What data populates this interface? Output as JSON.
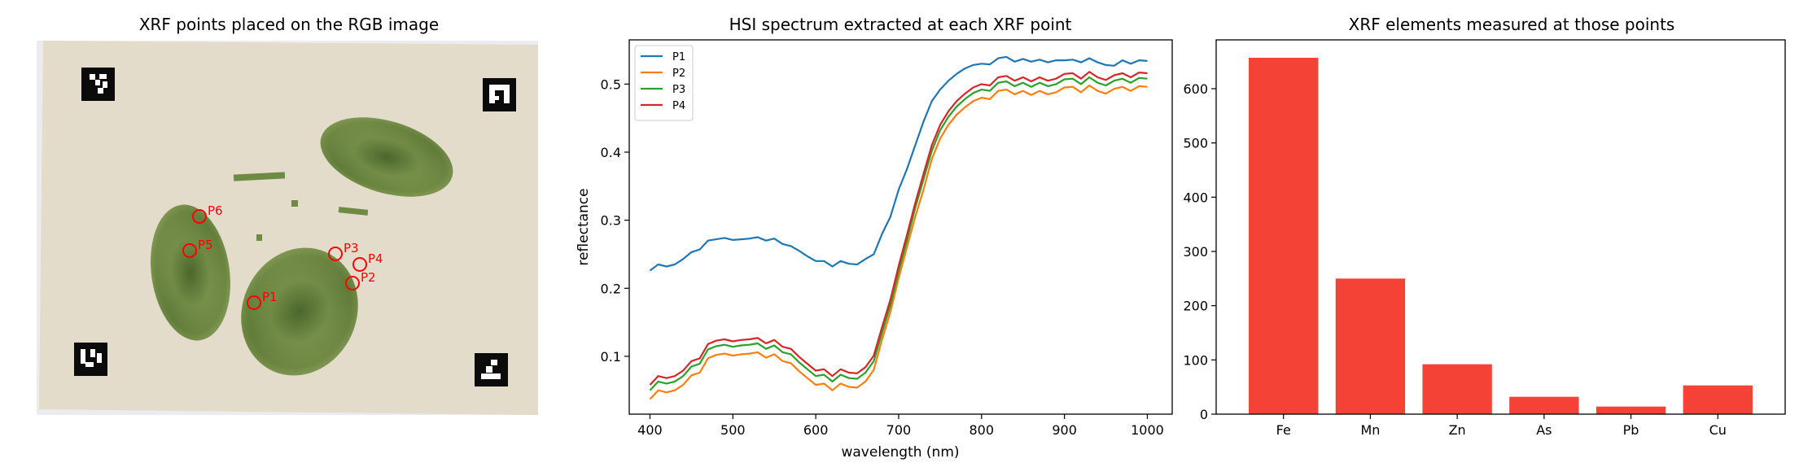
{
  "panels": {
    "image": {
      "title": "XRF points placed on the RGB image"
    },
    "spectrum": {
      "title": "HSI spectrum extracted at each XRF point"
    },
    "elements": {
      "title": "XRF elements measured at those points"
    }
  },
  "image_points": [
    {
      "label": "P1"
    },
    {
      "label": "P2"
    },
    {
      "label": "P3"
    },
    {
      "label": "P4"
    },
    {
      "label": "P5"
    },
    {
      "label": "P6"
    }
  ],
  "colors": {
    "marker": "#ff0000",
    "bar": "#f44336",
    "series": [
      "#1f77b4",
      "#ff7f0e",
      "#2ca02c",
      "#d62728"
    ],
    "paper": "#e3dccb",
    "leaf": "#6e8a44"
  },
  "chart_data": [
    {
      "type": "line",
      "title": "HSI spectrum extracted at each XRF point",
      "xlabel": "wavelength (nm)",
      "ylabel": "reflectance",
      "xlim": [
        375,
        1030
      ],
      "ylim": [
        0.015,
        0.565
      ],
      "xticks": [
        400,
        500,
        600,
        700,
        800,
        900,
        1000
      ],
      "yticks": [
        0.1,
        0.2,
        0.3,
        0.4,
        0.5
      ],
      "legend": "upper left",
      "x": [
        400,
        410,
        420,
        430,
        440,
        450,
        460,
        470,
        480,
        490,
        500,
        510,
        520,
        530,
        540,
        550,
        560,
        570,
        580,
        590,
        600,
        610,
        620,
        630,
        640,
        650,
        660,
        670,
        680,
        690,
        700,
        710,
        720,
        730,
        740,
        750,
        760,
        770,
        780,
        790,
        800,
        810,
        820,
        830,
        840,
        850,
        860,
        870,
        880,
        890,
        900,
        910,
        920,
        930,
        940,
        950,
        960,
        970,
        980,
        990,
        1000
      ],
      "series": [
        {
          "name": "P1",
          "values": [
            0.226,
            0.235,
            0.232,
            0.235,
            0.243,
            0.253,
            0.257,
            0.27,
            0.272,
            0.274,
            0.271,
            0.272,
            0.273,
            0.275,
            0.27,
            0.273,
            0.265,
            0.262,
            0.255,
            0.247,
            0.24,
            0.24,
            0.232,
            0.24,
            0.236,
            0.235,
            0.243,
            0.25,
            0.28,
            0.305,
            0.345,
            0.375,
            0.41,
            0.445,
            0.475,
            0.492,
            0.505,
            0.515,
            0.523,
            0.528,
            0.53,
            0.529,
            0.538,
            0.54,
            0.533,
            0.537,
            0.533,
            0.536,
            0.532,
            0.535,
            0.535,
            0.536,
            0.532,
            0.538,
            0.532,
            0.528,
            0.527,
            0.535,
            0.53,
            0.535,
            0.534
          ]
        },
        {
          "name": "P2",
          "values": [
            0.037,
            0.05,
            0.047,
            0.05,
            0.058,
            0.072,
            0.076,
            0.097,
            0.102,
            0.104,
            0.101,
            0.103,
            0.104,
            0.106,
            0.098,
            0.103,
            0.093,
            0.09,
            0.078,
            0.068,
            0.058,
            0.06,
            0.05,
            0.06,
            0.055,
            0.054,
            0.063,
            0.08,
            0.125,
            0.165,
            0.215,
            0.26,
            0.305,
            0.345,
            0.39,
            0.42,
            0.44,
            0.455,
            0.466,
            0.475,
            0.48,
            0.478,
            0.49,
            0.492,
            0.485,
            0.49,
            0.484,
            0.49,
            0.485,
            0.488,
            0.495,
            0.496,
            0.488,
            0.498,
            0.49,
            0.486,
            0.493,
            0.496,
            0.49,
            0.497,
            0.496
          ]
        },
        {
          "name": "P3",
          "values": [
            0.05,
            0.063,
            0.06,
            0.063,
            0.071,
            0.085,
            0.089,
            0.11,
            0.115,
            0.117,
            0.114,
            0.116,
            0.117,
            0.119,
            0.111,
            0.116,
            0.106,
            0.103,
            0.091,
            0.081,
            0.071,
            0.073,
            0.063,
            0.073,
            0.068,
            0.067,
            0.076,
            0.093,
            0.135,
            0.175,
            0.225,
            0.27,
            0.318,
            0.36,
            0.402,
            0.432,
            0.452,
            0.467,
            0.478,
            0.487,
            0.492,
            0.49,
            0.502,
            0.504,
            0.497,
            0.502,
            0.496,
            0.502,
            0.497,
            0.5,
            0.507,
            0.508,
            0.5,
            0.51,
            0.502,
            0.498,
            0.505,
            0.508,
            0.502,
            0.509,
            0.508
          ]
        },
        {
          "name": "P4",
          "values": [
            0.058,
            0.071,
            0.068,
            0.071,
            0.079,
            0.093,
            0.097,
            0.118,
            0.123,
            0.125,
            0.122,
            0.124,
            0.125,
            0.127,
            0.119,
            0.124,
            0.114,
            0.111,
            0.099,
            0.089,
            0.079,
            0.081,
            0.071,
            0.081,
            0.076,
            0.075,
            0.084,
            0.101,
            0.143,
            0.183,
            0.233,
            0.278,
            0.325,
            0.368,
            0.41,
            0.44,
            0.46,
            0.475,
            0.486,
            0.495,
            0.5,
            0.498,
            0.51,
            0.512,
            0.505,
            0.51,
            0.504,
            0.51,
            0.505,
            0.508,
            0.515,
            0.516,
            0.508,
            0.518,
            0.51,
            0.506,
            0.513,
            0.516,
            0.51,
            0.517,
            0.516
          ]
        }
      ]
    },
    {
      "type": "bar",
      "title": "XRF elements measured at those points",
      "categories": [
        "Fe",
        "Mn",
        "Zn",
        "As",
        "Pb",
        "Cu"
      ],
      "values": [
        657,
        250,
        92,
        32,
        14,
        53
      ],
      "ylim": [
        0,
        690
      ],
      "yticks": [
        0,
        100,
        200,
        300,
        400,
        500,
        600
      ]
    }
  ]
}
